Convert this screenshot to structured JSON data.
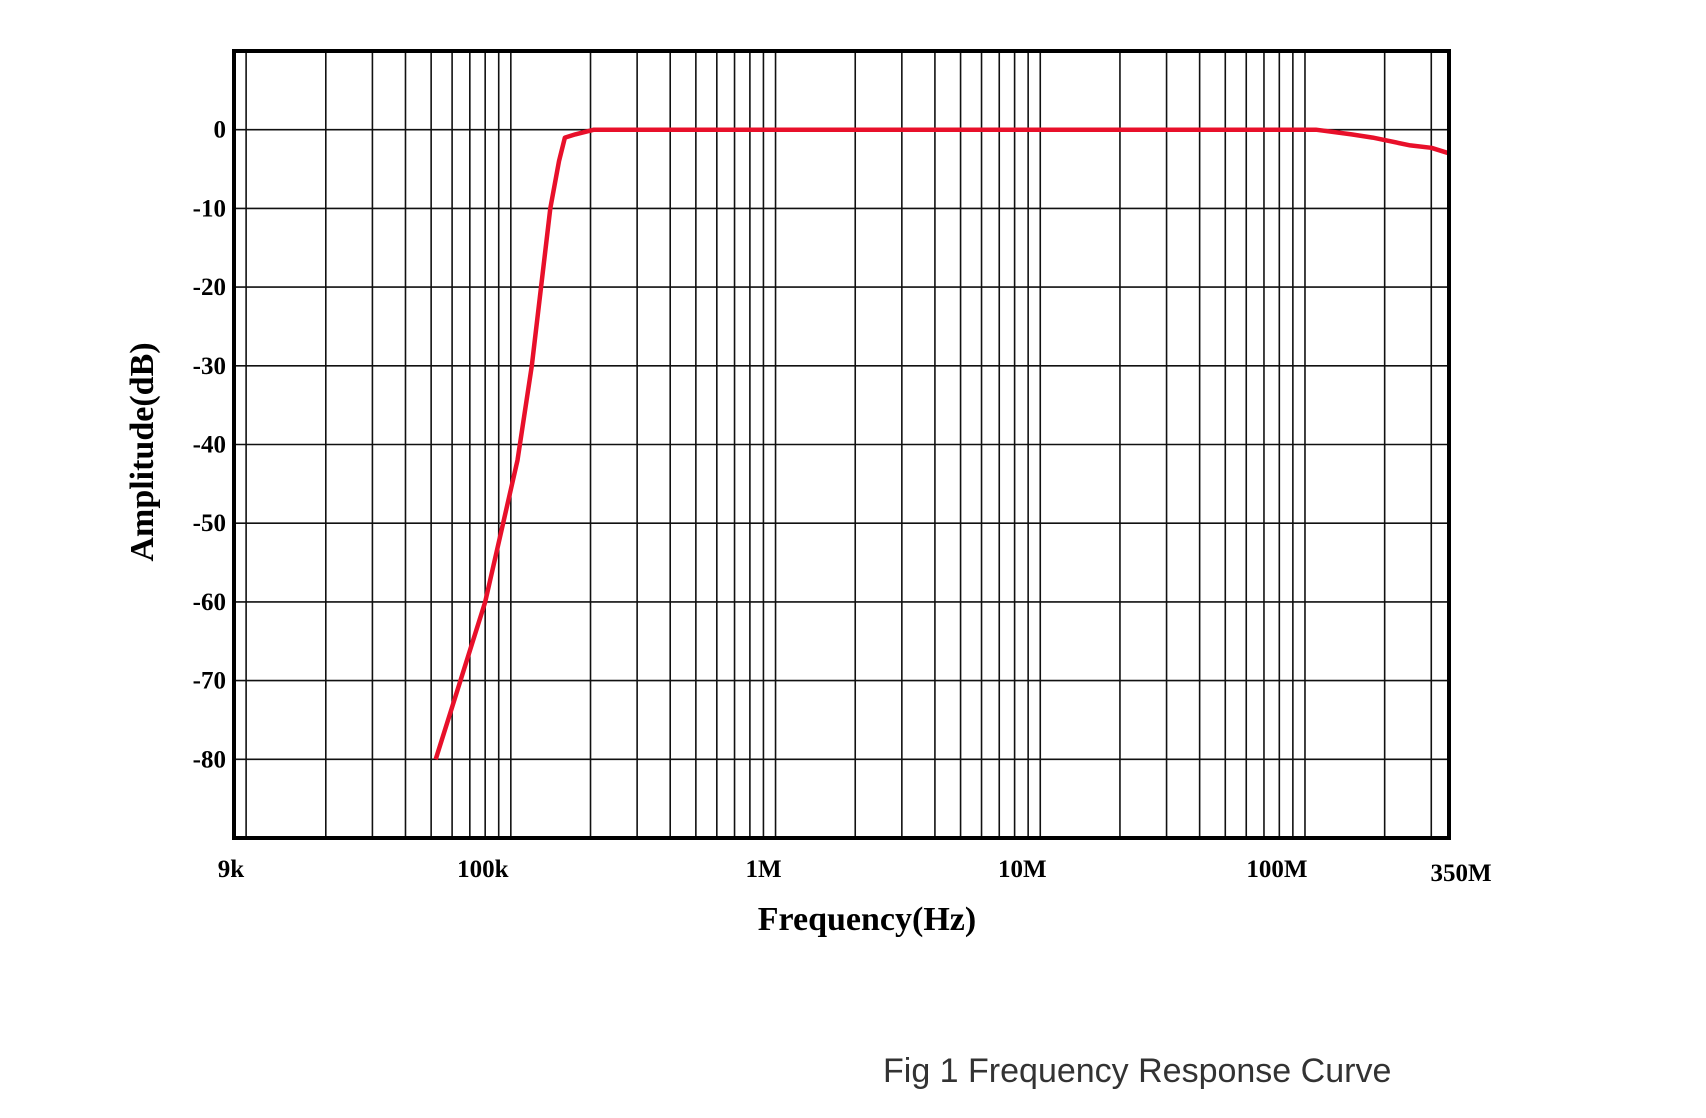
{
  "chart_data": {
    "type": "line",
    "caption": "Fig 1 Frequency Response Curve",
    "xlabel": "Frequency(Hz)",
    "ylabel": "Amplitude(dB)",
    "xscale": "log",
    "xlim": [
      9000,
      350000000
    ],
    "ylim": [
      -90,
      10
    ],
    "grid": true,
    "x_ticks": [
      {
        "value": 9000,
        "label": "9k"
      },
      {
        "value": 100000,
        "label": "100k"
      },
      {
        "value": 1000000,
        "label": "1M"
      },
      {
        "value": 10000000,
        "label": "10M"
      },
      {
        "value": 100000000,
        "label": "100M"
      },
      {
        "value": 350000000,
        "label": "350M"
      }
    ],
    "y_ticks": [
      {
        "value": 0,
        "label": "0"
      },
      {
        "value": -10,
        "label": "-10"
      },
      {
        "value": -20,
        "label": "-20"
      },
      {
        "value": -30,
        "label": "-30"
      },
      {
        "value": -40,
        "label": "-40"
      },
      {
        "value": -50,
        "label": "-50"
      },
      {
        "value": -60,
        "label": "-60"
      },
      {
        "value": -70,
        "label": "-70"
      },
      {
        "value": -80,
        "label": "-80"
      }
    ],
    "series": [
      {
        "color": "#e8102a",
        "x": [
          52000,
          80000,
          106000,
          120000,
          141000,
          152000,
          160000,
          175000,
          206000,
          1000000,
          10000000,
          110000000,
          150000000,
          180000000,
          250000000,
          300000000,
          350000000
        ],
        "y": [
          -80,
          -60,
          -42,
          -30,
          -10,
          -4,
          -1,
          -0.6,
          0,
          0,
          0,
          0,
          -0.6,
          -1,
          -2,
          -2.3,
          -3
        ]
      }
    ]
  }
}
